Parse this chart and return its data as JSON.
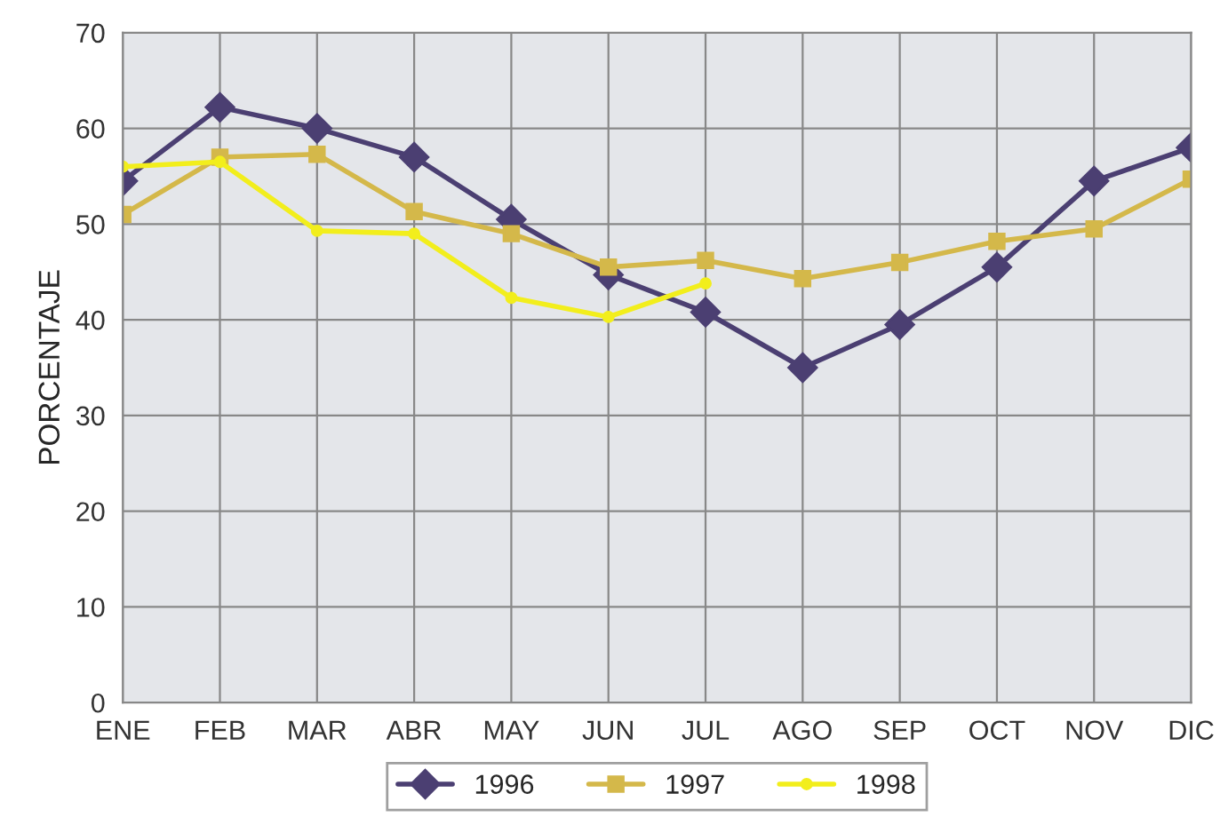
{
  "chart_data": {
    "type": "line",
    "ylabel": "PORCENTAJE",
    "categories": [
      "ENE",
      "FEB",
      "MAR",
      "ABR",
      "MAY",
      "JUN",
      "JUL",
      "AGO",
      "SEP",
      "OCT",
      "NOV",
      "DIC"
    ],
    "series": [
      {
        "name": "1996",
        "color": "#4b3f72",
        "marker": "diamond",
        "values": [
          54.5,
          62.2,
          60,
          57,
          50.5,
          44.7,
          40.8,
          35,
          39.5,
          45.5,
          54.5,
          58
        ]
      },
      {
        "name": "1997",
        "color": "#d4b84a",
        "marker": "square",
        "values": [
          51,
          57,
          57.3,
          51.3,
          49,
          45.5,
          46.2,
          44.3,
          46,
          48.2,
          49.5,
          54.7
        ]
      },
      {
        "name": "1998",
        "color": "#f2ee1c",
        "marker": "circle",
        "values": [
          56,
          56.5,
          49.3,
          49,
          42.3,
          40.3,
          43.8,
          null,
          null,
          null,
          null,
          null
        ]
      }
    ],
    "ylim": [
      0,
      70
    ],
    "yticks": [
      0,
      10,
      20,
      30,
      40,
      50,
      60,
      70
    ],
    "grid": true,
    "legend": "bottom",
    "line_style": "solid"
  }
}
